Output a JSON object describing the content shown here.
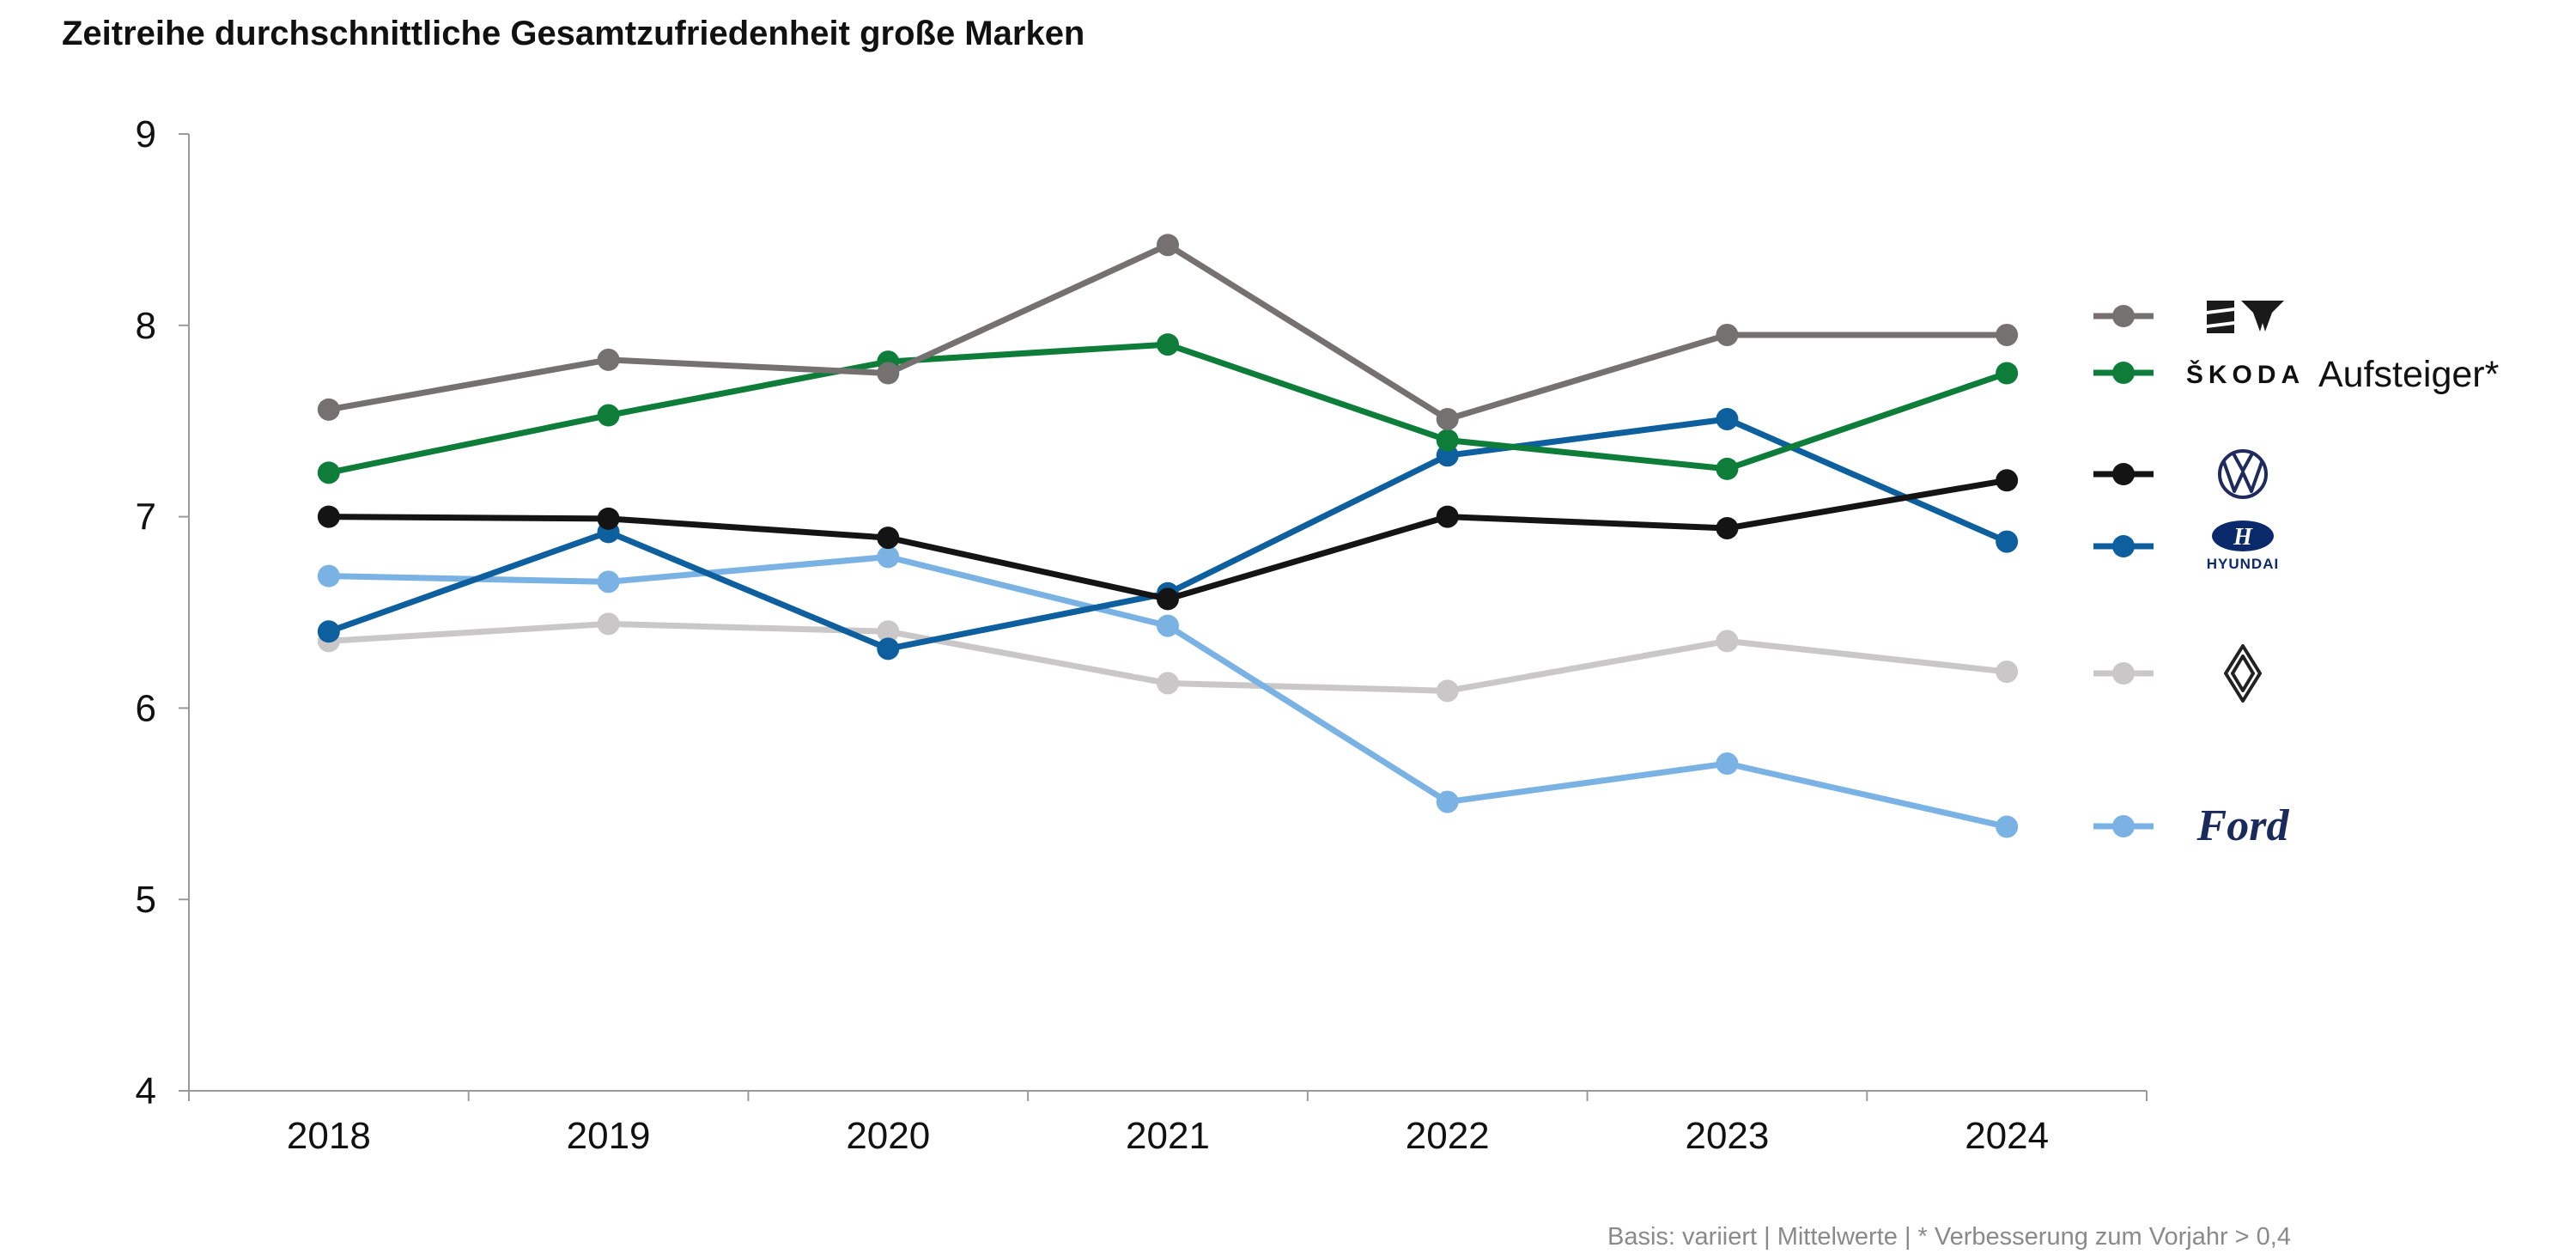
{
  "colors": {
    "seat_cupra": "#767171",
    "skoda": "#0e7d3a",
    "vw": "#141414",
    "hyundai": "#0d5f9e",
    "renault": "#c9c7c7",
    "ford": "#7ab3e3",
    "axis": "#9a9a9a",
    "footnote": "#8a8a8a"
  },
  "chart_data": {
    "type": "line",
    "title": "Zeitreihe durchschnittliche Gesamtzufriedenheit große Marken",
    "xlabel": "",
    "ylabel": "",
    "categories": [
      "2018",
      "2019",
      "2020",
      "2021",
      "2022",
      "2023",
      "2024"
    ],
    "ylim": [
      4,
      9
    ],
    "yticks": [
      "4",
      "5",
      "6",
      "7",
      "8",
      "9"
    ],
    "grid": false,
    "legend_position": "right",
    "series": [
      {
        "key": "seat_cupra",
        "values": [
          7.56,
          7.82,
          7.75,
          8.42,
          7.51,
          7.95,
          7.95
        ],
        "legend_icon": "seat-cupra-logo-icon"
      },
      {
        "key": "skoda",
        "values": [
          7.23,
          7.53,
          7.81,
          7.9,
          7.4,
          7.25,
          7.75
        ],
        "legend_icon": "skoda-logo-icon",
        "legend_text": "ŠKODA",
        "annotation": "Aufsteiger*"
      },
      {
        "key": "vw",
        "values": [
          7.0,
          6.99,
          6.89,
          6.57,
          7.0,
          6.94,
          7.19
        ],
        "legend_icon": "volkswagen-logo-icon"
      },
      {
        "key": "hyundai",
        "values": [
          6.4,
          6.92,
          6.31,
          6.6,
          7.32,
          7.51,
          6.87
        ],
        "legend_icon": "hyundai-logo-icon",
        "legend_text": "HYUNDAI"
      },
      {
        "key": "renault",
        "values": [
          6.35,
          6.44,
          6.4,
          6.13,
          6.09,
          6.35,
          6.19
        ],
        "legend_icon": "renault-logo-icon"
      },
      {
        "key": "ford",
        "values": [
          6.69,
          6.66,
          6.79,
          6.43,
          5.51,
          5.71,
          5.38
        ],
        "legend_icon": "ford-logo-icon",
        "legend_text": "Ford"
      }
    ]
  },
  "footnote": "Basis: variiert | Mittelwerte | * Verbesserung zum Vorjahr > 0,4"
}
